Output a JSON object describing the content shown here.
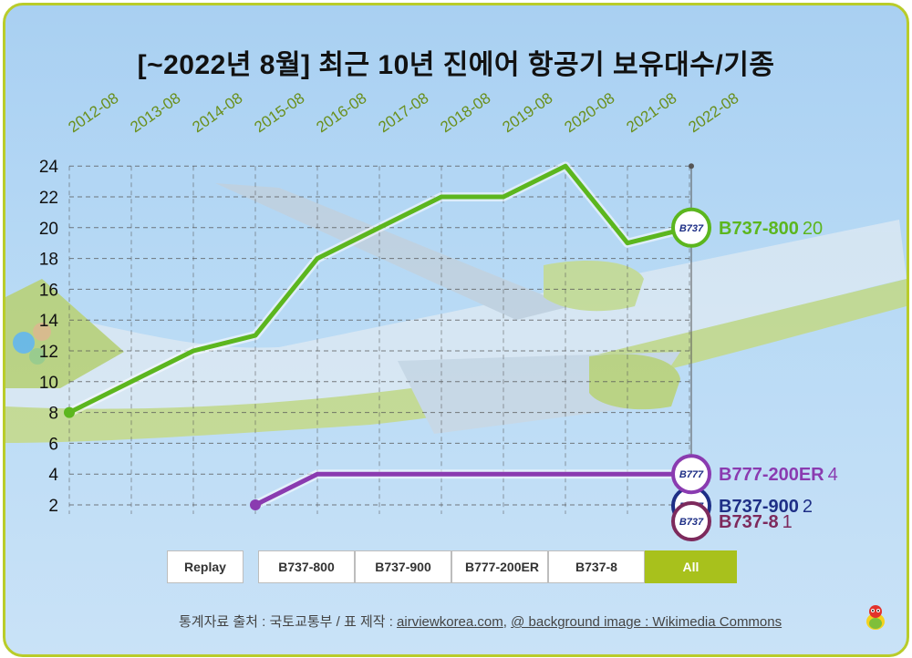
{
  "title": "[~2022년 8월] 최근 10년 진에어 항공기 보유대수/기종",
  "colors": {
    "B737-800": "#5cb61e",
    "B737-900": "#1e2f86",
    "B777-200ER": "#8a3bb0",
    "B737-8": "#7d2a5c",
    "accent": "#a8c11c",
    "x_label": "#6a8f1c"
  },
  "buttons": {
    "replay": "Replay",
    "series": [
      "B737-800",
      "B737-900",
      "B777-200ER",
      "B737-8"
    ],
    "all": "All",
    "active": "All"
  },
  "footer": {
    "prefix": "통계자료 출처 : 국토교통부 / 표 제작 : ",
    "site": "airviewkorea.com",
    "sep": ", ",
    "bg_credit": "@ background image : Wikimedia Commons"
  },
  "chart_data": {
    "type": "line",
    "x": [
      "2012-08",
      "2013-08",
      "2014-08",
      "2015-08",
      "2016-08",
      "2017-08",
      "2018-08",
      "2019-08",
      "2020-08",
      "2021-08",
      "2022-08"
    ],
    "ylim": [
      0,
      24
    ],
    "yticks": [
      2,
      4,
      6,
      8,
      10,
      12,
      14,
      16,
      18,
      20,
      22,
      24
    ],
    "grid": true,
    "series": [
      {
        "name": "B737-800",
        "badge": "B737",
        "end_value": 20,
        "values": [
          8,
          10,
          12,
          13,
          18,
          20,
          22,
          22,
          24,
          19,
          20
        ]
      },
      {
        "name": "B777-200ER",
        "badge": "B777",
        "end_value": 4,
        "values": [
          null,
          null,
          null,
          2,
          4,
          4,
          4,
          4,
          4,
          4,
          4
        ]
      },
      {
        "name": "B737-900",
        "badge": "B737",
        "end_value": 2,
        "values": [
          null,
          null,
          null,
          null,
          null,
          null,
          null,
          null,
          null,
          null,
          2
        ]
      },
      {
        "name": "B737-8",
        "badge": "B737",
        "end_value": 1,
        "values": [
          null,
          null,
          null,
          null,
          null,
          null,
          null,
          null,
          null,
          null,
          1
        ]
      }
    ]
  }
}
